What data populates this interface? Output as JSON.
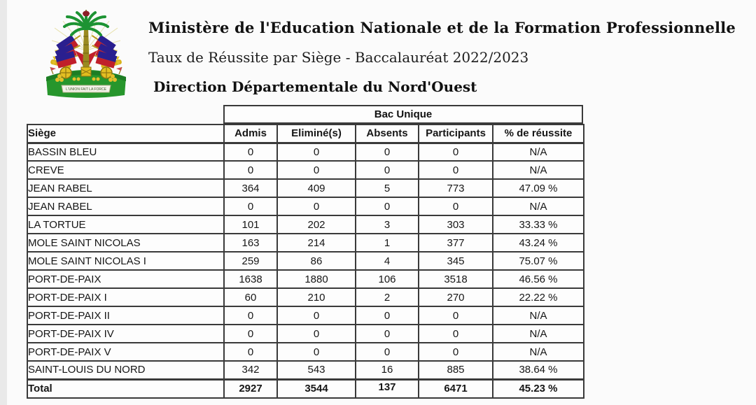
{
  "header": {
    "line1": "Ministère de l'Education Nationale et de la Formation Professionnelle",
    "line2": "Taux de Réussite par Siège - Baccalauréat 2022/2023",
    "line3": "Direction Départementale du Nord'Ouest"
  },
  "logo": {
    "name": "haiti-coat-of-arms",
    "motto": "L'UNION FAIT LA FORCE",
    "colors": {
      "flag_blue": "#2a1f8f",
      "flag_red": "#c01f2a",
      "palm_green": "#1d9333",
      "grass_green": "#27962c",
      "cannon_gold": "#d9b31b",
      "cap_red": "#8c1f28"
    }
  },
  "table": {
    "group_header": "Bac Unique",
    "columns": [
      "Siège",
      "Admis",
      "Eliminé(s)",
      "Absents",
      "Participants",
      "% de réussite"
    ],
    "column_keys": [
      "siege",
      "admis",
      "elimines",
      "absents",
      "participants",
      "reussite"
    ],
    "rows": [
      [
        "BASSIN BLEU",
        "0",
        "0",
        "0",
        "0",
        "N/A"
      ],
      [
        "CREVE",
        "0",
        "0",
        "0",
        "0",
        "N/A"
      ],
      [
        "JEAN RABEL",
        "364",
        "409",
        "5",
        "773",
        "47.09 %"
      ],
      [
        "JEAN RABEL",
        "0",
        "0",
        "0",
        "0",
        "N/A"
      ],
      [
        "LA TORTUE",
        "101",
        "202",
        "3",
        "303",
        "33.33 %"
      ],
      [
        "MOLE SAINT NICOLAS",
        "163",
        "214",
        "1",
        "377",
        "43.24 %"
      ],
      [
        "MOLE SAINT NICOLAS I",
        "259",
        "86",
        "4",
        "345",
        "75.07 %"
      ],
      [
        "PORT-DE-PAIX",
        "1638",
        "1880",
        "106",
        "3518",
        "46.56 %"
      ],
      [
        "PORT-DE-PAIX I",
        "60",
        "210",
        "2",
        "270",
        "22.22 %"
      ],
      [
        "PORT-DE-PAIX II",
        "0",
        "0",
        "0",
        "0",
        "N/A"
      ],
      [
        "PORT-DE-PAIX IV",
        "0",
        "0",
        "0",
        "0",
        "N/A"
      ],
      [
        "PORT-DE-PAIX V",
        "0",
        "0",
        "0",
        "0",
        "N/A"
      ],
      [
        "SAINT-LOUIS DU NORD",
        "342",
        "543",
        "16",
        "885",
        "38.64 %"
      ]
    ],
    "total_row": [
      "Total",
      "2927",
      "3544",
      "137",
      "6471",
      "45.23 %"
    ]
  }
}
